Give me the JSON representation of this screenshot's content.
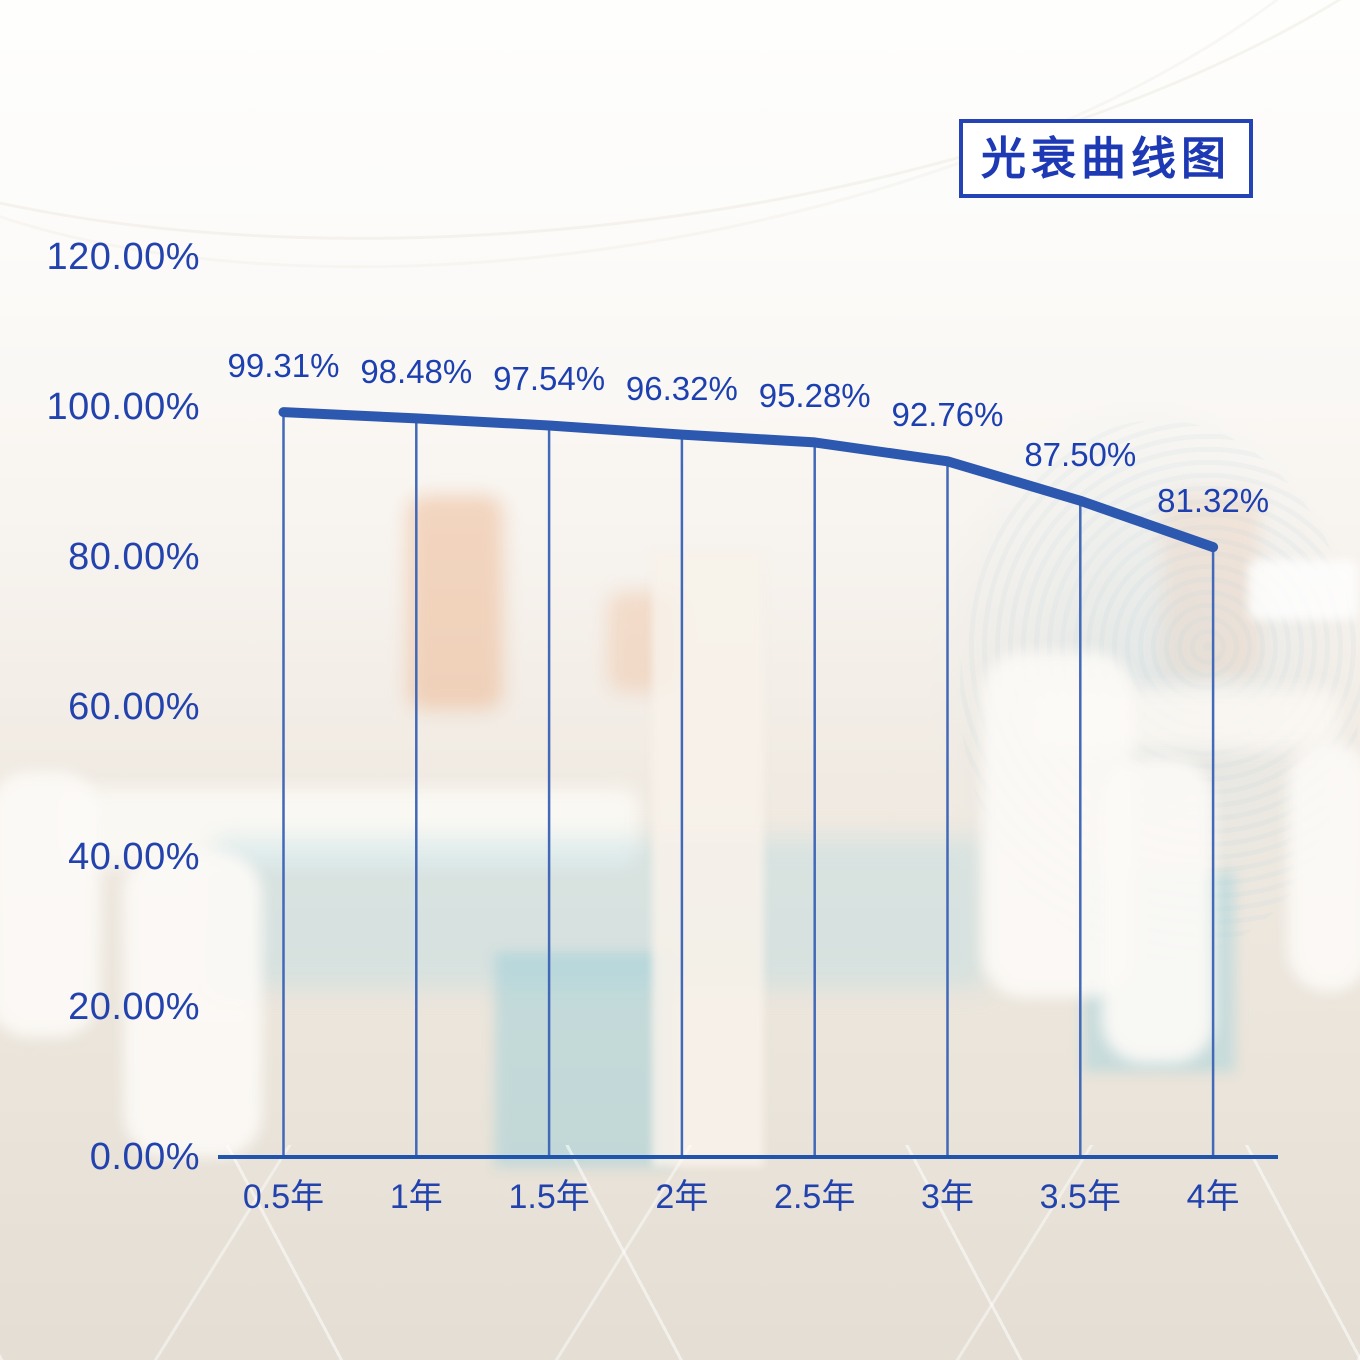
{
  "page": {
    "title_box": "光衰曲线图"
  },
  "chart_data": {
    "type": "line",
    "title": "光衰曲线图",
    "categories": [
      "0.5年",
      "1年",
      "1.5年",
      "2年",
      "2.5年",
      "3年",
      "3.5年",
      "4年"
    ],
    "values": [
      99.31,
      98.48,
      97.54,
      96.32,
      95.28,
      92.76,
      87.5,
      81.32
    ],
    "point_labels": [
      "99.31%",
      "98.48%",
      "97.54%",
      "96.32%",
      "95.28%",
      "92.76%",
      "87.50%",
      "81.32%"
    ],
    "xlabel": "",
    "ylabel": "",
    "ylim": [
      0,
      120
    ],
    "y_tick_values": [
      0,
      20,
      40,
      60,
      80,
      100,
      120
    ],
    "y_tick_labels": [
      "0.00%",
      "20.00%",
      "40.00%",
      "60.00%",
      "80.00%",
      "100.00%",
      "120.00%"
    ],
    "grid": "off",
    "legend": "none",
    "drop_lines": true
  },
  "colors": {
    "series_line": "#2d58b0",
    "drop_line": "#4268b8",
    "axis_line": "#2154ad",
    "tick_text": "#2243ae",
    "point_label_text": "#1d40b0",
    "title_text": "#1d39b3",
    "title_border": "#2443b5"
  }
}
